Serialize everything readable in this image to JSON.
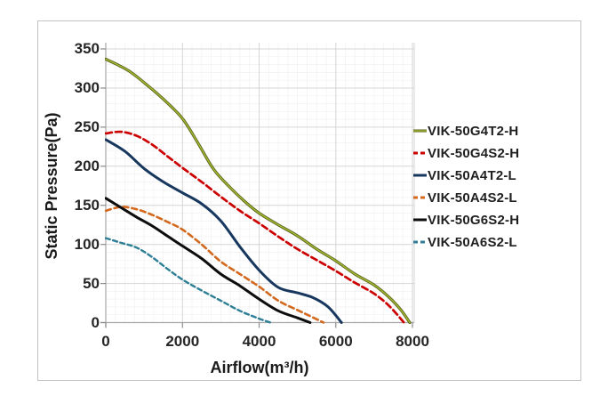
{
  "figure": {
    "background": "#ffffff",
    "frame_border_color": "#c3c3c3"
  },
  "chart_data": {
    "type": "line",
    "title": "",
    "xlabel": "Airflow(m³/h)",
    "ylabel": "Static Pressure(Pa)",
    "xlim": [
      0,
      8046
    ],
    "ylim": [
      0,
      358
    ],
    "x_ticks": [
      0,
      2000,
      4000,
      6000,
      8000
    ],
    "y_ticks": [
      0,
      50,
      100,
      150,
      200,
      250,
      300,
      350
    ],
    "grid": {
      "minor_x_step": 250,
      "minor_y_step": 10,
      "major_color": "#d6d6d6",
      "minor_color": "#f1f1f1",
      "axis_color": "#a8a8a8",
      "tick_color": "#8c8c8c"
    },
    "legend_position": "right",
    "series": [
      {
        "name": "VIK-50G4T2-H",
        "color": "#55611b",
        "highlight": "#a9ba31",
        "dash": null,
        "width": 3.2,
        "points": [
          [
            0,
            337
          ],
          [
            300,
            330
          ],
          [
            600,
            322
          ],
          [
            1000,
            307
          ],
          [
            1500,
            286
          ],
          [
            2000,
            261
          ],
          [
            2400,
            230
          ],
          [
            2800,
            197
          ],
          [
            3200,
            175
          ],
          [
            3600,
            156
          ],
          [
            4000,
            140
          ],
          [
            4500,
            125
          ],
          [
            5000,
            111
          ],
          [
            5500,
            94
          ],
          [
            6000,
            79
          ],
          [
            6500,
            62
          ],
          [
            7000,
            48
          ],
          [
            7400,
            32
          ],
          [
            7700,
            16
          ],
          [
            7930,
            0
          ]
        ]
      },
      {
        "name": "VIK-50G4S2-H",
        "color": "#cc0000",
        "highlight": null,
        "dash": "7,4",
        "width": 2.7,
        "points": [
          [
            0,
            242
          ],
          [
            400,
            244
          ],
          [
            800,
            239
          ],
          [
            1200,
            228
          ],
          [
            1600,
            213
          ],
          [
            2000,
            198
          ],
          [
            2500,
            180
          ],
          [
            3000,
            161
          ],
          [
            3500,
            143
          ],
          [
            4000,
            127
          ],
          [
            4500,
            110
          ],
          [
            5000,
            94
          ],
          [
            5500,
            80
          ],
          [
            6000,
            66
          ],
          [
            6500,
            51
          ],
          [
            7000,
            37
          ],
          [
            7400,
            21
          ],
          [
            7780,
            0
          ]
        ]
      },
      {
        "name": "VIK-50A4T2-L",
        "color": "#17375e",
        "highlight": null,
        "dash": null,
        "width": 3,
        "points": [
          [
            0,
            234
          ],
          [
            500,
            219
          ],
          [
            1000,
            197
          ],
          [
            1500,
            180
          ],
          [
            2000,
            166
          ],
          [
            2500,
            152
          ],
          [
            3000,
            130
          ],
          [
            3500,
            97
          ],
          [
            4000,
            67
          ],
          [
            4500,
            45
          ],
          [
            5000,
            38
          ],
          [
            5400,
            32
          ],
          [
            5800,
            20
          ],
          [
            6150,
            0
          ]
        ]
      },
      {
        "name": "VIK-50A4S2-L",
        "color": "#d2691e",
        "highlight": null,
        "dash": "6,4",
        "width": 2.6,
        "points": [
          [
            0,
            143
          ],
          [
            400,
            148
          ],
          [
            800,
            145
          ],
          [
            1200,
            138
          ],
          [
            1600,
            129
          ],
          [
            2000,
            119
          ],
          [
            2500,
            100
          ],
          [
            3000,
            78
          ],
          [
            3500,
            62
          ],
          [
            4000,
            46
          ],
          [
            4500,
            28
          ],
          [
            5000,
            16
          ],
          [
            5300,
            9
          ],
          [
            5680,
            0
          ]
        ]
      },
      {
        "name": "VIK-50G6S2-H",
        "color": "#0d0d0d",
        "highlight": null,
        "dash": null,
        "width": 3,
        "points": [
          [
            0,
            159
          ],
          [
            400,
            147
          ],
          [
            800,
            135
          ],
          [
            1200,
            124
          ],
          [
            1600,
            111
          ],
          [
            2000,
            98
          ],
          [
            2500,
            82
          ],
          [
            3000,
            62
          ],
          [
            3500,
            47
          ],
          [
            4000,
            30
          ],
          [
            4500,
            15
          ],
          [
            5000,
            6
          ],
          [
            5330,
            0
          ]
        ]
      },
      {
        "name": "VIK-50A6S2-L",
        "color": "#2e7f96",
        "highlight": null,
        "dash": "5,3.5",
        "width": 2.4,
        "points": [
          [
            0,
            108
          ],
          [
            400,
            102
          ],
          [
            800,
            96
          ],
          [
            1200,
            84
          ],
          [
            1600,
            69
          ],
          [
            2000,
            55
          ],
          [
            2500,
            41
          ],
          [
            3000,
            28
          ],
          [
            3500,
            15
          ],
          [
            4000,
            5
          ],
          [
            4300,
            0
          ]
        ]
      }
    ]
  }
}
